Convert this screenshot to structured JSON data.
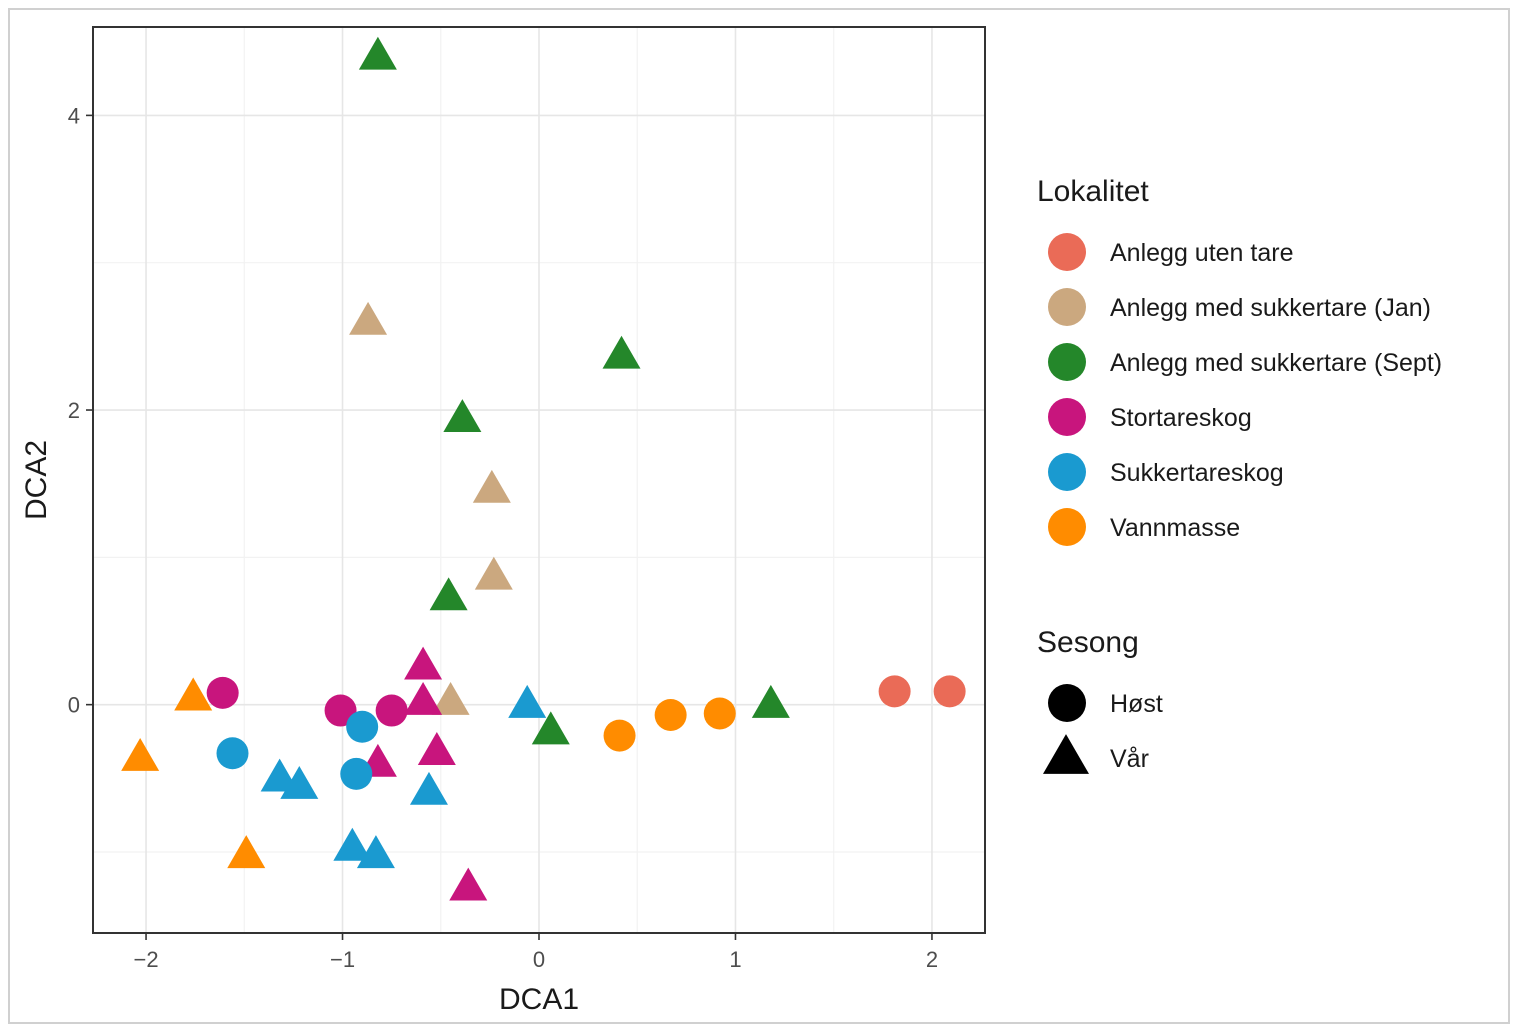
{
  "chart_data": {
    "type": "scatter",
    "xlabel": "DCA1",
    "ylabel": "DCA2",
    "xlim": [
      -2.27,
      2.27
    ],
    "ylim": [
      -1.55,
      4.6
    ],
    "xticks": [
      -2,
      -1,
      0,
      1,
      2
    ],
    "xtick_labels": [
      "−2",
      "−1",
      "0",
      "1",
      "2"
    ],
    "yticks": [
      0,
      2,
      4
    ],
    "ytick_labels": [
      "0",
      "2",
      "4"
    ],
    "grid": true,
    "legend_position": "right",
    "legends": {
      "color": {
        "title": "Lokalitet",
        "items": [
          {
            "label": "Anlegg uten tare",
            "color": "#ea6b57"
          },
          {
            "label": "Anlegg med sukkertare (Jan)",
            "color": "#cba87f"
          },
          {
            "label": "Anlegg med sukkertare (Sept)",
            "color": "#24872a"
          },
          {
            "label": "Stortareskog",
            "color": "#c8157d"
          },
          {
            "label": "Sukkertareskog",
            "color": "#1a9ad0"
          },
          {
            "label": "Vannmasse",
            "color": "#ff8c00"
          }
        ]
      },
      "shape": {
        "title": "Sesong",
        "items": [
          {
            "label": "Høst",
            "shape": "circle"
          },
          {
            "label": "Vår",
            "shape": "triangle"
          }
        ]
      }
    },
    "series": [
      {
        "name": "Anlegg uten tare",
        "season": "Høst",
        "color": "#ea6b57",
        "shape": "circle",
        "points": [
          [
            1.81,
            0.09
          ],
          [
            2.09,
            0.09
          ]
        ]
      },
      {
        "name": "Anlegg med sukkertare (Jan)",
        "season": "Vår",
        "color": "#cba87f",
        "shape": "triangle",
        "points": [
          [
            -0.87,
            2.6
          ],
          [
            -0.24,
            1.46
          ],
          [
            -0.23,
            0.87
          ],
          [
            -0.45,
            0.02
          ]
        ]
      },
      {
        "name": "Anlegg med sukkertare (Sept)",
        "season": "Vår",
        "color": "#24872a",
        "shape": "triangle",
        "points": [
          [
            -0.82,
            4.4
          ],
          [
            0.42,
            2.37
          ],
          [
            -0.39,
            1.94
          ],
          [
            -0.46,
            0.73
          ],
          [
            0.06,
            -0.18
          ],
          [
            1.18,
            0.0
          ]
        ]
      },
      {
        "name": "Stortareskog",
        "season": "Høst",
        "color": "#c8157d",
        "shape": "circle",
        "points": [
          [
            -1.61,
            0.08
          ],
          [
            -1.01,
            -0.04
          ],
          [
            -0.75,
            -0.04
          ]
        ]
      },
      {
        "name": "Stortareskog",
        "season": "Vår",
        "color": "#c8157d",
        "shape": "triangle",
        "points": [
          [
            -0.59,
            0.26
          ],
          [
            -0.59,
            0.02
          ],
          [
            -0.52,
            -0.32
          ],
          [
            -0.82,
            -0.4
          ],
          [
            -0.36,
            -1.24
          ]
        ]
      },
      {
        "name": "Sukkertareskog",
        "season": "Høst",
        "color": "#1a9ad0",
        "shape": "circle",
        "points": [
          [
            -1.56,
            -0.33
          ],
          [
            -0.9,
            -0.15
          ],
          [
            -0.93,
            -0.47
          ]
        ]
      },
      {
        "name": "Sukkertareskog",
        "season": "Vår",
        "color": "#1a9ad0",
        "shape": "triangle",
        "points": [
          [
            -0.06,
            0.0
          ],
          [
            -1.32,
            -0.5
          ],
          [
            -1.22,
            -0.55
          ],
          [
            -0.56,
            -0.59
          ],
          [
            -0.95,
            -0.97
          ],
          [
            -0.83,
            -1.02
          ]
        ]
      },
      {
        "name": "Vannmasse",
        "season": "Høst",
        "color": "#ff8c00",
        "shape": "circle",
        "points": [
          [
            0.41,
            -0.21
          ],
          [
            0.67,
            -0.07
          ],
          [
            0.92,
            -0.06
          ]
        ]
      },
      {
        "name": "Vannmasse",
        "season": "Vår",
        "color": "#ff8c00",
        "shape": "triangle",
        "points": [
          [
            -1.76,
            0.05
          ],
          [
            -2.03,
            -0.36
          ],
          [
            -1.49,
            -1.02
          ]
        ]
      }
    ]
  }
}
